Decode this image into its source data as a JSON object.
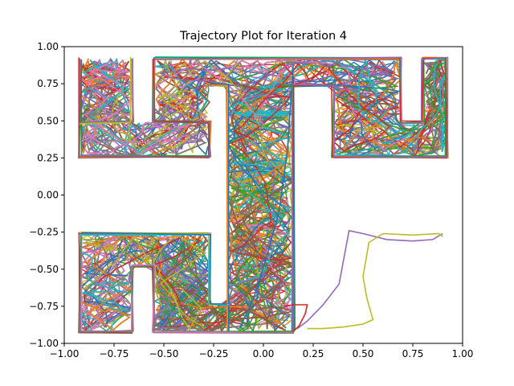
{
  "chart_data": {
    "type": "line",
    "title": "Trajectory Plot for Iteration 4",
    "xlabel": "",
    "ylabel": "",
    "xlim": [
      -1.0,
      1.0
    ],
    "ylim": [
      -1.0,
      1.0
    ],
    "x_ticks": [
      "−1.00",
      "−0.75",
      "−0.50",
      "−0.25",
      "0.00",
      "0.25",
      "0.50",
      "0.75",
      "1.00"
    ],
    "y_ticks": [
      "−1.00",
      "−0.75",
      "−0.50",
      "−0.25",
      "0.00",
      "0.25",
      "0.50",
      "0.75",
      "1.00"
    ],
    "grid": false,
    "legend": "none",
    "colors": [
      "#1f77b4",
      "#ff7f0e",
      "#2ca02c",
      "#d62728",
      "#9467bd",
      "#8c564b",
      "#e377c2",
      "#7f7f7f",
      "#bcbd22",
      "#17becf"
    ],
    "series": [
      {
        "color": "#9467bd",
        "x": [
          0.17,
          0.22,
          0.3,
          0.38,
          0.43,
          0.5,
          0.62,
          0.75,
          0.85,
          0.9
        ],
        "y": [
          -0.9,
          -0.85,
          -0.74,
          -0.6,
          -0.24,
          -0.26,
          -0.3,
          -0.31,
          -0.3,
          -0.26
        ]
      },
      {
        "color": "#bcbd22",
        "x": [
          0.22,
          0.3,
          0.4,
          0.5,
          0.55,
          0.52,
          0.5,
          0.53,
          0.6,
          0.75,
          0.88,
          0.9
        ],
        "y": [
          -0.9,
          -0.9,
          -0.89,
          -0.87,
          -0.84,
          -0.7,
          -0.55,
          -0.32,
          -0.26,
          -0.27,
          -0.26,
          -0.28
        ]
      },
      {
        "color": "#d62728",
        "x": [
          0.1,
          0.15,
          0.18,
          0.22,
          0.21,
          0.18,
          0.15
        ],
        "y": [
          -0.75,
          -0.74,
          -0.74,
          -0.74,
          -0.8,
          -0.88,
          -0.92
        ]
      },
      {
        "color": "#1f77b4",
        "x": [
          -0.12,
          -0.05,
          0.02,
          0.08,
          0.12,
          0.15
        ],
        "y": [
          -0.9,
          -0.7,
          -0.4,
          -0.1,
          0.3,
          0.88
        ]
      }
    ]
  }
}
